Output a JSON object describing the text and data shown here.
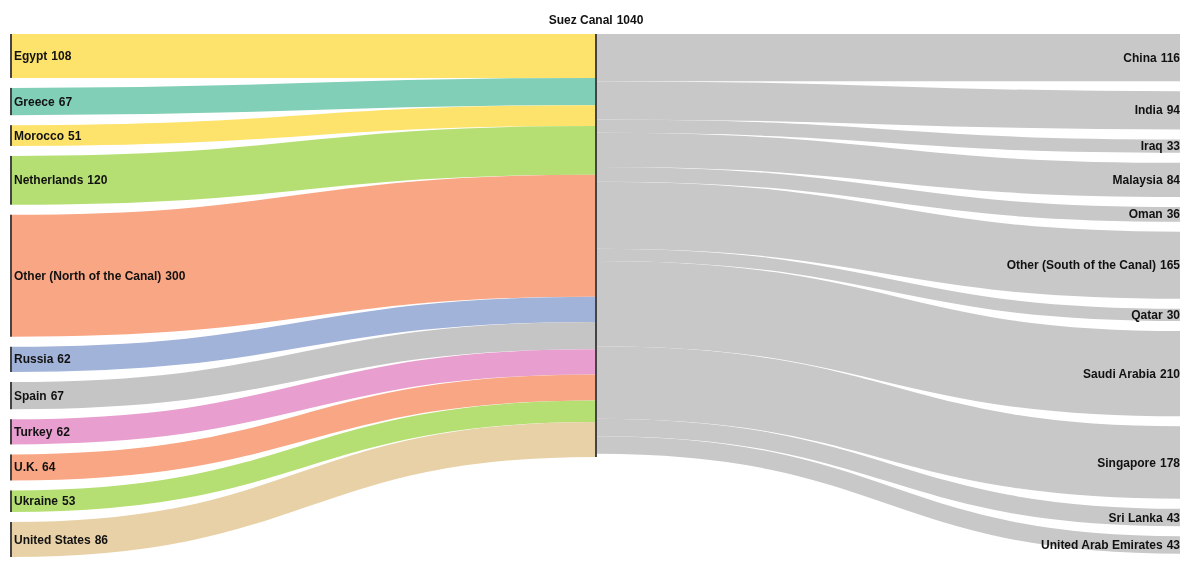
{
  "chart_data": {
    "type": "other",
    "data_labels": true,
    "categories": [
      "Egypt",
      "Greece",
      "Morocco",
      "Netherlands",
      "Other (North of the Canal)",
      "Russia",
      "Spain",
      "Turkey",
      "U.K.",
      "Ukraine",
      "United States",
      "Suez Canal",
      "China",
      "India",
      "Iraq",
      "Malaysia",
      "Oman",
      "Other (South of the Canal)",
      "Qatar",
      "Saudi Arabia",
      "Singapore",
      "Sri Lanka",
      "United Arab Emirates"
    ],
    "values": [
      108,
      67,
      51,
      120,
      300,
      62,
      67,
      62,
      64,
      53,
      86,
      1040,
      116,
      94,
      33,
      84,
      36,
      165,
      30,
      210,
      178,
      43,
      43
    ],
    "colors": [
      "#fde36b",
      "#82cfb7",
      "#fde36b",
      "#b5df72",
      "#f9a684",
      "#a2b3d9",
      "#c5c5c5",
      "#e89fcf",
      "#f9a684",
      "#b5df72",
      "#e8d1a6",
      "#444444",
      "#c8c8c8",
      "#c8c8c8",
      "#c8c8c8",
      "#c8c8c8",
      "#c8c8c8",
      "#c8c8c8",
      "#c8c8c8",
      "#c8c8c8",
      "#c8c8c8",
      "#c8c8c8",
      "#c8c8c8"
    ]
  }
}
